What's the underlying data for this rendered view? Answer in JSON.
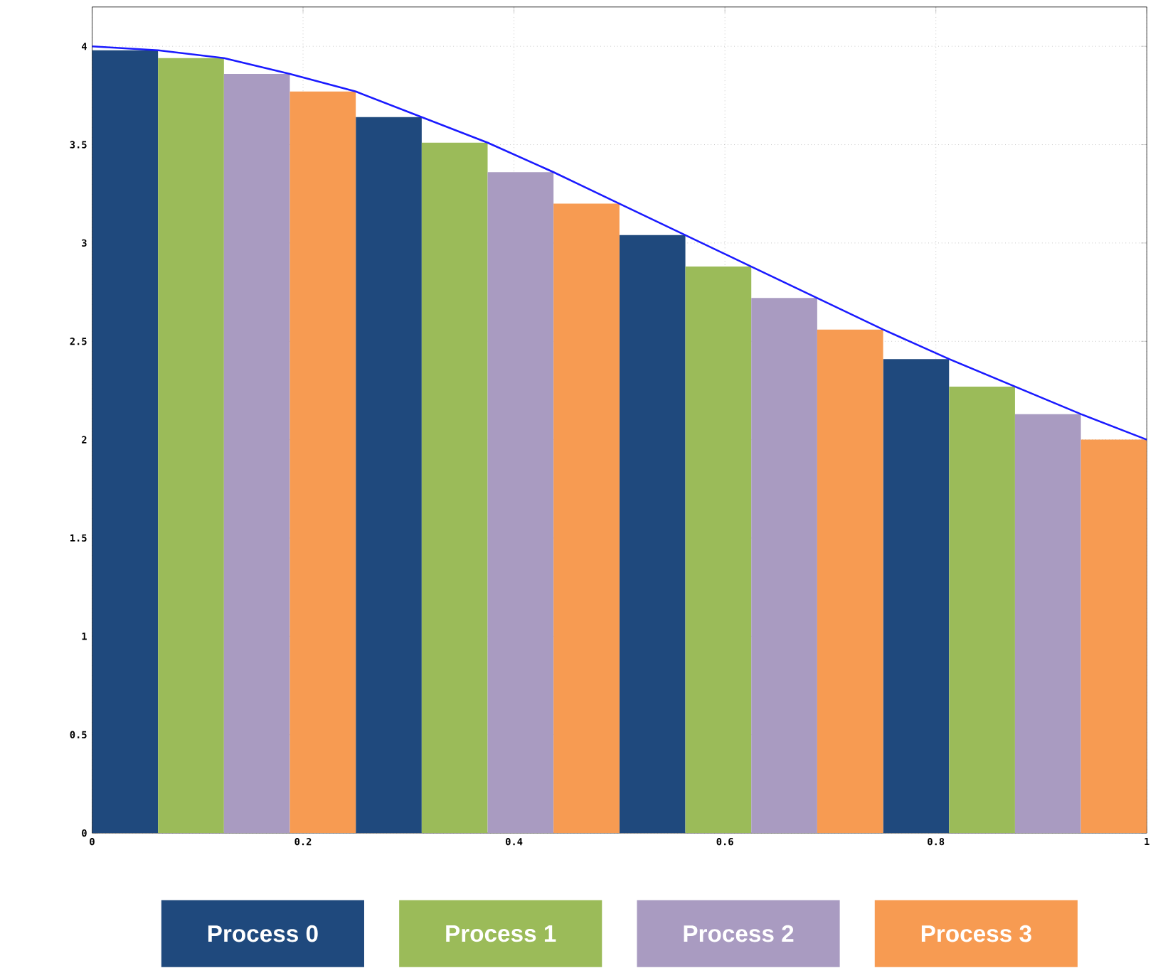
{
  "chart_data": {
    "type": "bar",
    "xlim": [
      0,
      1
    ],
    "ylim": [
      0,
      4.2
    ],
    "xticks": [
      0,
      0.2,
      0.4,
      0.6,
      0.8,
      1
    ],
    "yticks": [
      0,
      0.5,
      1,
      1.5,
      2,
      2.5,
      3,
      3.5,
      4
    ],
    "grid": true,
    "legend": "bottom",
    "series": [
      {
        "name": "Process 0",
        "color": "#1f497d",
        "x": [
          0.03125,
          0.28125,
          0.53125,
          0.78125
        ],
        "values": [
          3.98,
          3.64,
          3.04,
          2.41
        ]
      },
      {
        "name": "Process 1",
        "color": "#9bbb59",
        "x": [
          0.09375,
          0.34375,
          0.59375,
          0.84375
        ],
        "values": [
          3.94,
          3.51,
          2.88,
          2.27
        ]
      },
      {
        "name": "Process 2",
        "color": "#a99bc1",
        "x": [
          0.15625,
          0.40625,
          0.65625,
          0.90625
        ],
        "values": [
          3.86,
          3.36,
          2.72,
          2.13
        ]
      },
      {
        "name": "Process 3",
        "color": "#f79b52",
        "x": [
          0.21875,
          0.46875,
          0.71875,
          0.96875
        ],
        "values": [
          3.77,
          3.2,
          2.56,
          2.0
        ]
      },
      {
        "type": "line",
        "color": "#1a1aff",
        "x": [
          0,
          0.0625,
          0.125,
          0.1875,
          0.25,
          0.3125,
          0.375,
          0.4375,
          0.5,
          0.5625,
          0.625,
          0.6875,
          0.75,
          0.8125,
          0.875,
          0.9375,
          1
        ],
        "values": [
          4.0,
          3.98,
          3.94,
          3.86,
          3.77,
          3.64,
          3.51,
          3.36,
          3.2,
          3.04,
          2.88,
          2.72,
          2.56,
          2.41,
          2.27,
          2.13,
          2.0
        ]
      }
    ]
  }
}
